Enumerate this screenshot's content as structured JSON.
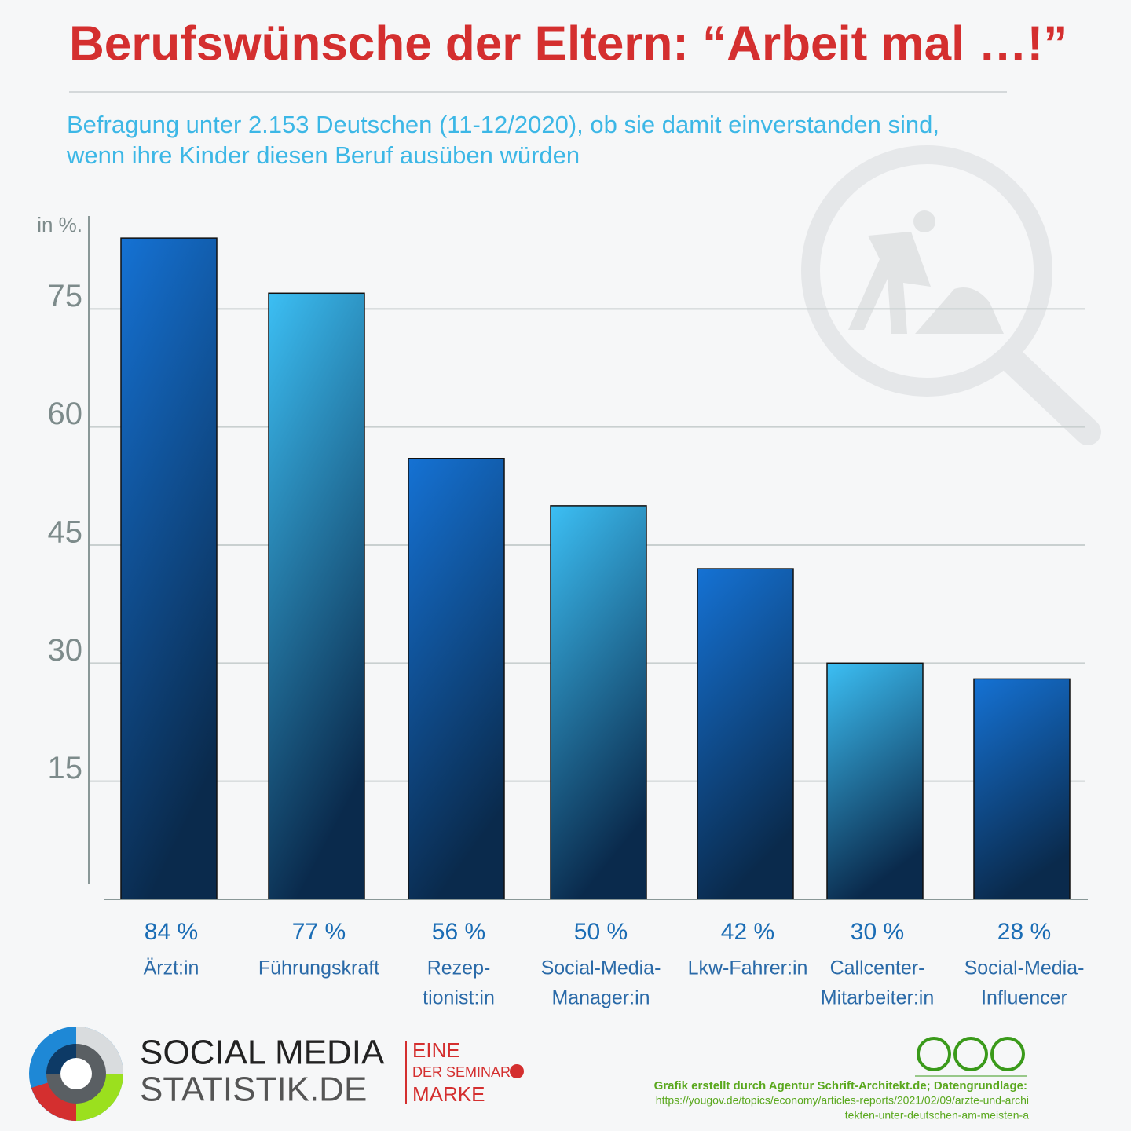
{
  "chart_data": {
    "type": "bar",
    "title": "Berufswünsche der Eltern: “Arbeit mal …!”",
    "subtitle": [
      "Befragung unter 2.153 Deutschen (11-12/2020), ob sie damit einverstanden sind,",
      "wenn ihre Kinder diesen Beruf ausüben würden"
    ],
    "y_unit": "in %.",
    "categories": [
      [
        "Ärzt:in"
      ],
      [
        "Führungskraft"
      ],
      [
        "Rezep-",
        "tionist:in"
      ],
      [
        "Social-Media-",
        "Manager:in"
      ],
      [
        "Lkw-Fahrer:in"
      ],
      [
        "Callcenter-",
        "Mitarbeiter:in"
      ],
      [
        "Social-Media-",
        "Influencer"
      ]
    ],
    "values": [
      84,
      77,
      56,
      50,
      42,
      30,
      28
    ],
    "value_labels": [
      "84 %",
      "77 %",
      "56 %",
      "50 %",
      "42 %",
      "30 %",
      "28 %"
    ],
    "colors": [
      "#1572d4",
      "#3cbff4",
      "#1572d4",
      "#3cbff4",
      "#1572d4",
      "#3cbff4",
      "#1572d4"
    ],
    "gradient_end": "#0a2a4c",
    "ylim": [
      0,
      90
    ],
    "yticks": [
      15,
      30,
      45,
      60,
      75
    ],
    "grid": true
  },
  "footer": {
    "brand": [
      "SOCIAL MEDIA",
      "STATISTIK.DE"
    ],
    "seminar": [
      "EINE",
      "DER SEMINAR",
      "MARKE"
    ],
    "credit": "Grafik erstellt durch Agentur Schrift-Architekt.de; Datengrundlage:",
    "source": [
      "https://yougov.de/topics/economy/articles-reports/2021/02/09/arzte-und-archi",
      "tekten-unter-deutschen-am-meisten-a"
    ]
  }
}
